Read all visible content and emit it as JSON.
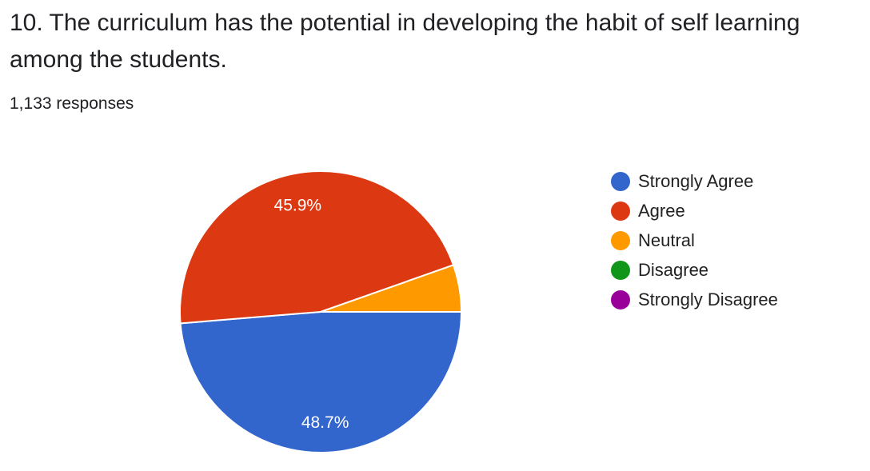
{
  "question": {
    "title": "10. The curriculum has the potential in developing the habit of self learning among the students."
  },
  "summary": {
    "responses": "1,133 responses"
  },
  "chart_data": {
    "type": "pie",
    "categories": [
      "Strongly Agree",
      "Agree",
      "Neutral",
      "Disagree",
      "Strongly Disagree"
    ],
    "values": [
      48.7,
      45.9,
      5.4,
      0,
      0
    ],
    "value_labels": [
      "48.7%",
      "45.9%",
      "",
      "",
      ""
    ],
    "colors": [
      "#3366cc",
      "#dc3912",
      "#ff9900",
      "#109618",
      "#990099"
    ],
    "legend_position": "right"
  }
}
